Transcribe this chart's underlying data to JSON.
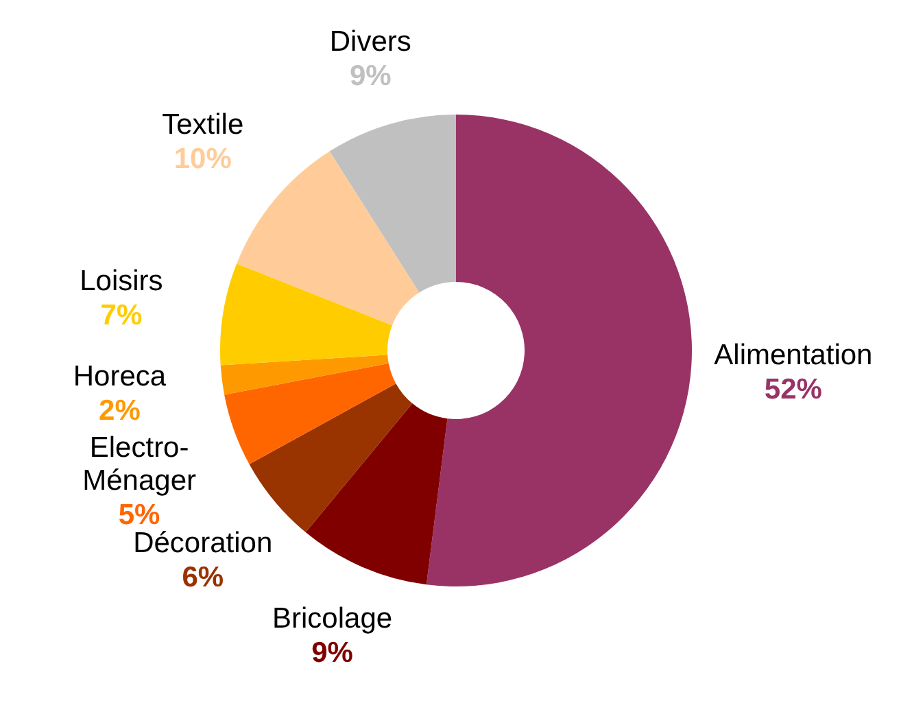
{
  "chart_data": {
    "type": "donut",
    "categories": [
      "Alimentation",
      "Bricolage",
      "Décoration",
      "Electro-Ménager",
      "Horeca",
      "Loisirs",
      "Textile",
      "Divers"
    ],
    "values": [
      52,
      9,
      6,
      5,
      2,
      7,
      10,
      9
    ],
    "colors": [
      "#993366",
      "#800000",
      "#993300",
      "#ff6600",
      "#ff9900",
      "#ffcc00",
      "#ffcc99",
      "#c0c0c0"
    ],
    "value_labels": [
      "52%",
      "9%",
      "6%",
      "5%",
      "2%",
      "7%",
      "10%",
      "9%"
    ]
  }
}
